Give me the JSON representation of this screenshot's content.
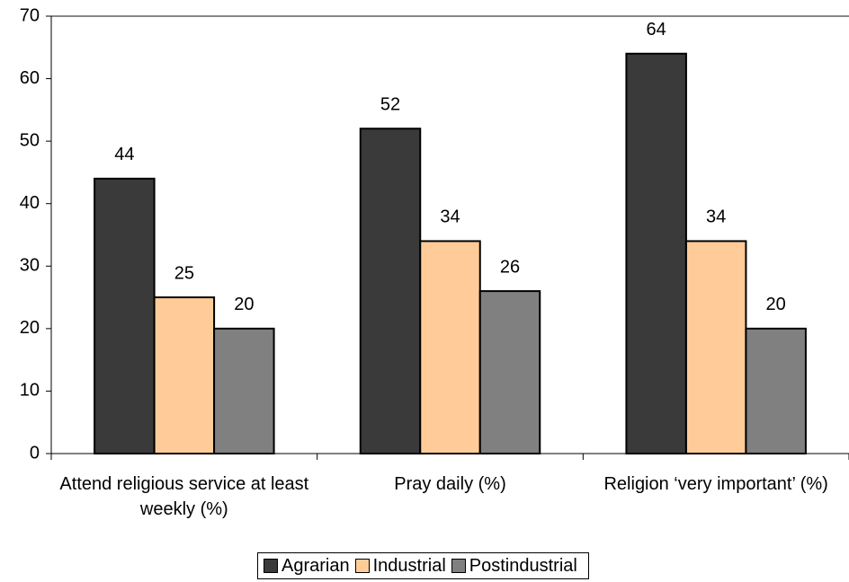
{
  "chart_data": {
    "type": "bar",
    "categories": [
      "Attend religious service at least weekly (%)",
      "Pray daily (%)",
      "Religion ‘very important’ (%)"
    ],
    "series": [
      {
        "name": "Agrarian",
        "color": "#3a3a3a",
        "values": [
          44,
          52,
          64
        ]
      },
      {
        "name": "Industrial",
        "color": "#ffcc99",
        "values": [
          25,
          34,
          34
        ]
      },
      {
        "name": "Postindustrial",
        "color": "#808080",
        "values": [
          20,
          26,
          20
        ]
      }
    ],
    "ylim": [
      0,
      70
    ],
    "yticks": [
      0,
      10,
      20,
      30,
      40,
      50,
      60,
      70
    ],
    "grid": false,
    "legend": "bottom"
  }
}
